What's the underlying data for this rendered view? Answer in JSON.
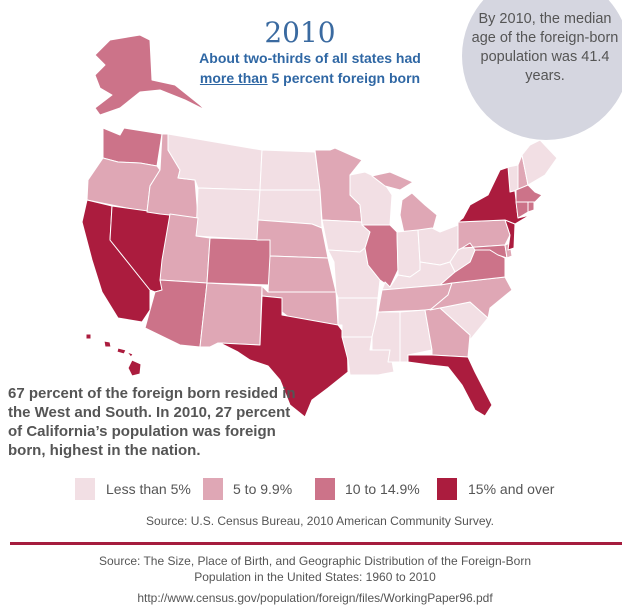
{
  "header": {
    "year": "2010",
    "subtitle_underlined": "more than",
    "subtitle_line1": "About two-thirds of all states had",
    "subtitle_line2_rest": " 5 percent foreign born"
  },
  "callout": {
    "text": "By 2010, the median age of the foreign-born population was 41.4 years."
  },
  "note": {
    "text": "67 percent of the foreign born resided in the West and South. In 2010, 27 percent of California’s population was foreign born, highest in the nation."
  },
  "legend": [
    {
      "label": "Less than 5%",
      "color": "#f2dfe4"
    },
    {
      "label": "5 to 9.9%",
      "color": "#dfa7b5"
    },
    {
      "label": "10 to 14.9%",
      "color": "#cc7389"
    },
    {
      "label": "15% and over",
      "color": "#ab1c3e"
    }
  ],
  "source_map": "Source:  U.S. Census Bureau, 2010 American Community Survey.",
  "source_paper_line1": "Source: The Size, Place of Birth, and Geographic Distribution of the Foreign-Born",
  "source_paper_line2": "Population in the United States: 1960 to 2010",
  "url": "http://www.census.gov/population/foreign/files/WorkingPaper96.pdf",
  "states": {
    "WA": 2,
    "OR": 1,
    "CA": 3,
    "NV": 3,
    "ID": 1,
    "MT": 0,
    "WY": 0,
    "UT": 1,
    "CO": 2,
    "AZ": 2,
    "NM": 1,
    "ND": 0,
    "SD": 0,
    "NE": 1,
    "KS": 1,
    "OK": 1,
    "TX": 3,
    "MN": 1,
    "IA": 0,
    "MO": 0,
    "AR": 0,
    "LA": 0,
    "WI": 0,
    "IL": 2,
    "MI": 1,
    "IN": 0,
    "OH": 0,
    "KY": 0,
    "TN": 1,
    "MS": 0,
    "AL": 0,
    "GA": 1,
    "FL": 3,
    "SC": 0,
    "NC": 1,
    "VA": 2,
    "WV": 0,
    "PA": 1,
    "MD": 2,
    "DE": 1,
    "NJ": 3,
    "NY": 3,
    "VT": 0,
    "NH": 1,
    "ME": 0,
    "MA": 2,
    "CT": 2,
    "RI": 2,
    "AK": 2,
    "HI": 3
  }
}
